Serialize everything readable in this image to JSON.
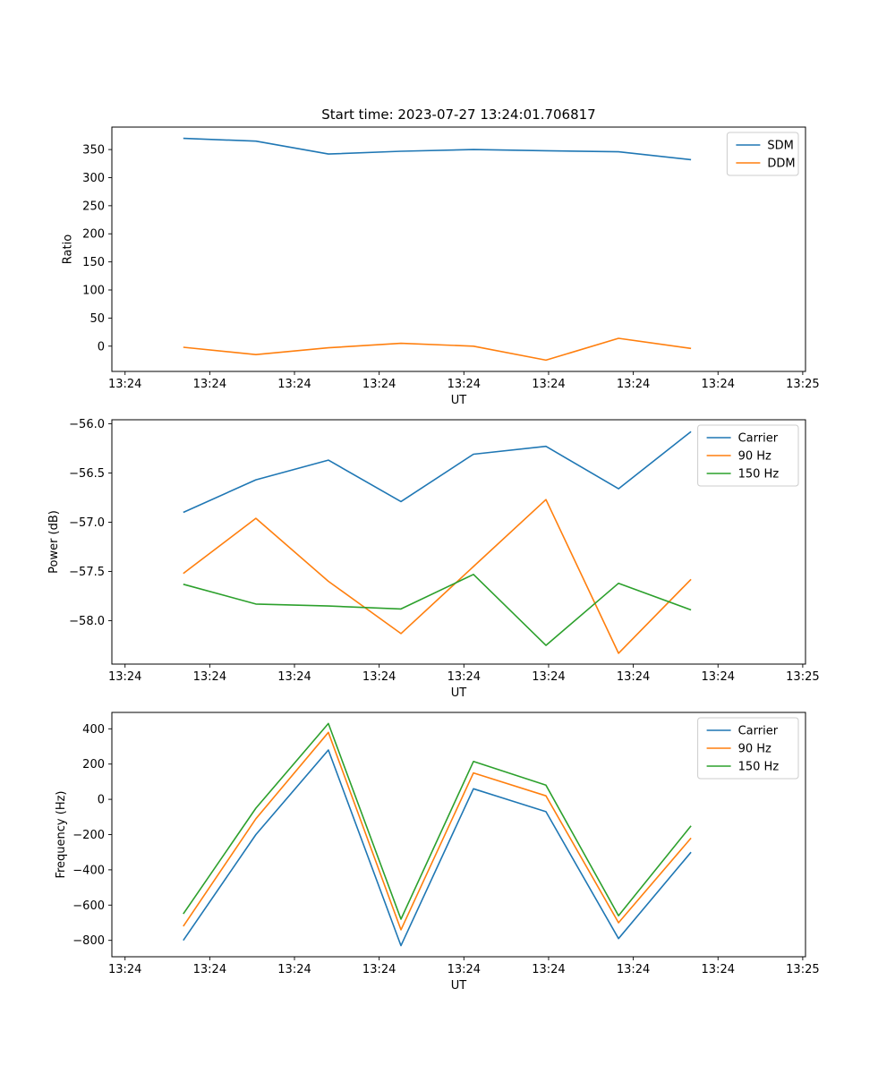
{
  "figure_title": "Start time: 2023-07-27 13:24:01.706817",
  "colors": {
    "blue": "#1f77b4",
    "orange": "#ff7f0e",
    "green": "#2ca02c"
  },
  "chart_data": [
    {
      "type": "line",
      "xlabel": "UT",
      "ylabel": "Ratio",
      "grid": false,
      "legend_position": "upper right",
      "x_tick_labels": [
        "13:24",
        "13:24",
        "13:24",
        "13:24",
        "13:24",
        "13:24",
        "13:24",
        "13:24",
        "13:25"
      ],
      "y_tick_values": [
        0,
        50,
        100,
        150,
        200,
        250,
        300,
        350
      ],
      "y_tick_labels": [
        "0",
        "50",
        "100",
        "150",
        "200",
        "250",
        "300",
        "350"
      ],
      "ylim": [
        -45,
        390
      ],
      "series": [
        {
          "name": "SDM",
          "color": "#1f77b4",
          "values": [
            370,
            365,
            342,
            347,
            350,
            348,
            346,
            332
          ]
        },
        {
          "name": "DDM",
          "color": "#ff7f0e",
          "values": [
            -2,
            -15,
            -3,
            5,
            0,
            -25,
            14,
            -4
          ]
        }
      ]
    },
    {
      "type": "line",
      "xlabel": "UT",
      "ylabel": "Power (dB)",
      "grid": false,
      "legend_position": "upper right",
      "x_tick_labels": [
        "13:24",
        "13:24",
        "13:24",
        "13:24",
        "13:24",
        "13:24",
        "13:24",
        "13:24",
        "13:25"
      ],
      "y_tick_values": [
        -58.0,
        -57.5,
        -57.0,
        -56.5,
        -56.0
      ],
      "y_tick_labels": [
        "−58.0",
        "−57.5",
        "−57.0",
        "−56.5",
        "−56.0"
      ],
      "ylim": [
        -58.44,
        -55.96
      ],
      "series": [
        {
          "name": "Carrier",
          "color": "#1f77b4",
          "values": [
            -56.9,
            -56.57,
            -56.37,
            -56.79,
            -56.31,
            -56.23,
            -56.66,
            -56.08
          ]
        },
        {
          "name": "90 Hz",
          "color": "#ff7f0e",
          "values": [
            -57.52,
            -56.96,
            -57.6,
            -58.13,
            -57.45,
            -56.77,
            -58.33,
            -57.58
          ]
        },
        {
          "name": "150 Hz",
          "color": "#2ca02c",
          "values": [
            -57.63,
            -57.83,
            -57.85,
            -57.88,
            -57.53,
            -58.25,
            -57.62,
            -57.89
          ]
        }
      ]
    },
    {
      "type": "line",
      "xlabel": "UT",
      "ylabel": "Frequency (Hz)",
      "grid": false,
      "legend_position": "upper right",
      "x_tick_labels": [
        "13:24",
        "13:24",
        "13:24",
        "13:24",
        "13:24",
        "13:24",
        "13:24",
        "13:24",
        "13:25"
      ],
      "y_tick_values": [
        -800,
        -600,
        -400,
        -200,
        0,
        200,
        400
      ],
      "y_tick_labels": [
        "−800",
        "−600",
        "−400",
        "−200",
        "0",
        "200",
        "400"
      ],
      "ylim": [
        -893,
        493
      ],
      "series": [
        {
          "name": "Carrier",
          "color": "#1f77b4",
          "values": [
            -800,
            -200,
            280,
            -830,
            60,
            -70,
            -790,
            -300
          ]
        },
        {
          "name": "90 Hz",
          "color": "#ff7f0e",
          "values": [
            -720,
            -110,
            380,
            -740,
            150,
            20,
            -700,
            -220
          ]
        },
        {
          "name": "150 Hz",
          "color": "#2ca02c",
          "values": [
            -650,
            -50,
            430,
            -680,
            215,
            80,
            -660,
            -150
          ]
        }
      ]
    }
  ]
}
